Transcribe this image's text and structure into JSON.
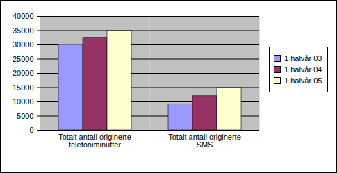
{
  "chart_data": {
    "type": "bar",
    "categories": [
      "Totalt antall originerte telefoniminutter",
      "Totalt antall originerte SMS"
    ],
    "series": [
      {
        "name": "1 halvår 03",
        "color": "#9999ff",
        "values": [
          30000,
          9200
        ]
      },
      {
        "name": "1 halvår 04",
        "color": "#993366",
        "values": [
          32500,
          12000
        ]
      },
      {
        "name": "1 halvår 05",
        "color": "#ffffcc",
        "values": [
          35000,
          15000
        ]
      }
    ],
    "ylim": [
      0,
      40000
    ],
    "yticks": [
      0,
      5000,
      10000,
      15000,
      20000,
      25000,
      30000,
      35000,
      40000
    ],
    "grid": true,
    "legend": "right"
  }
}
